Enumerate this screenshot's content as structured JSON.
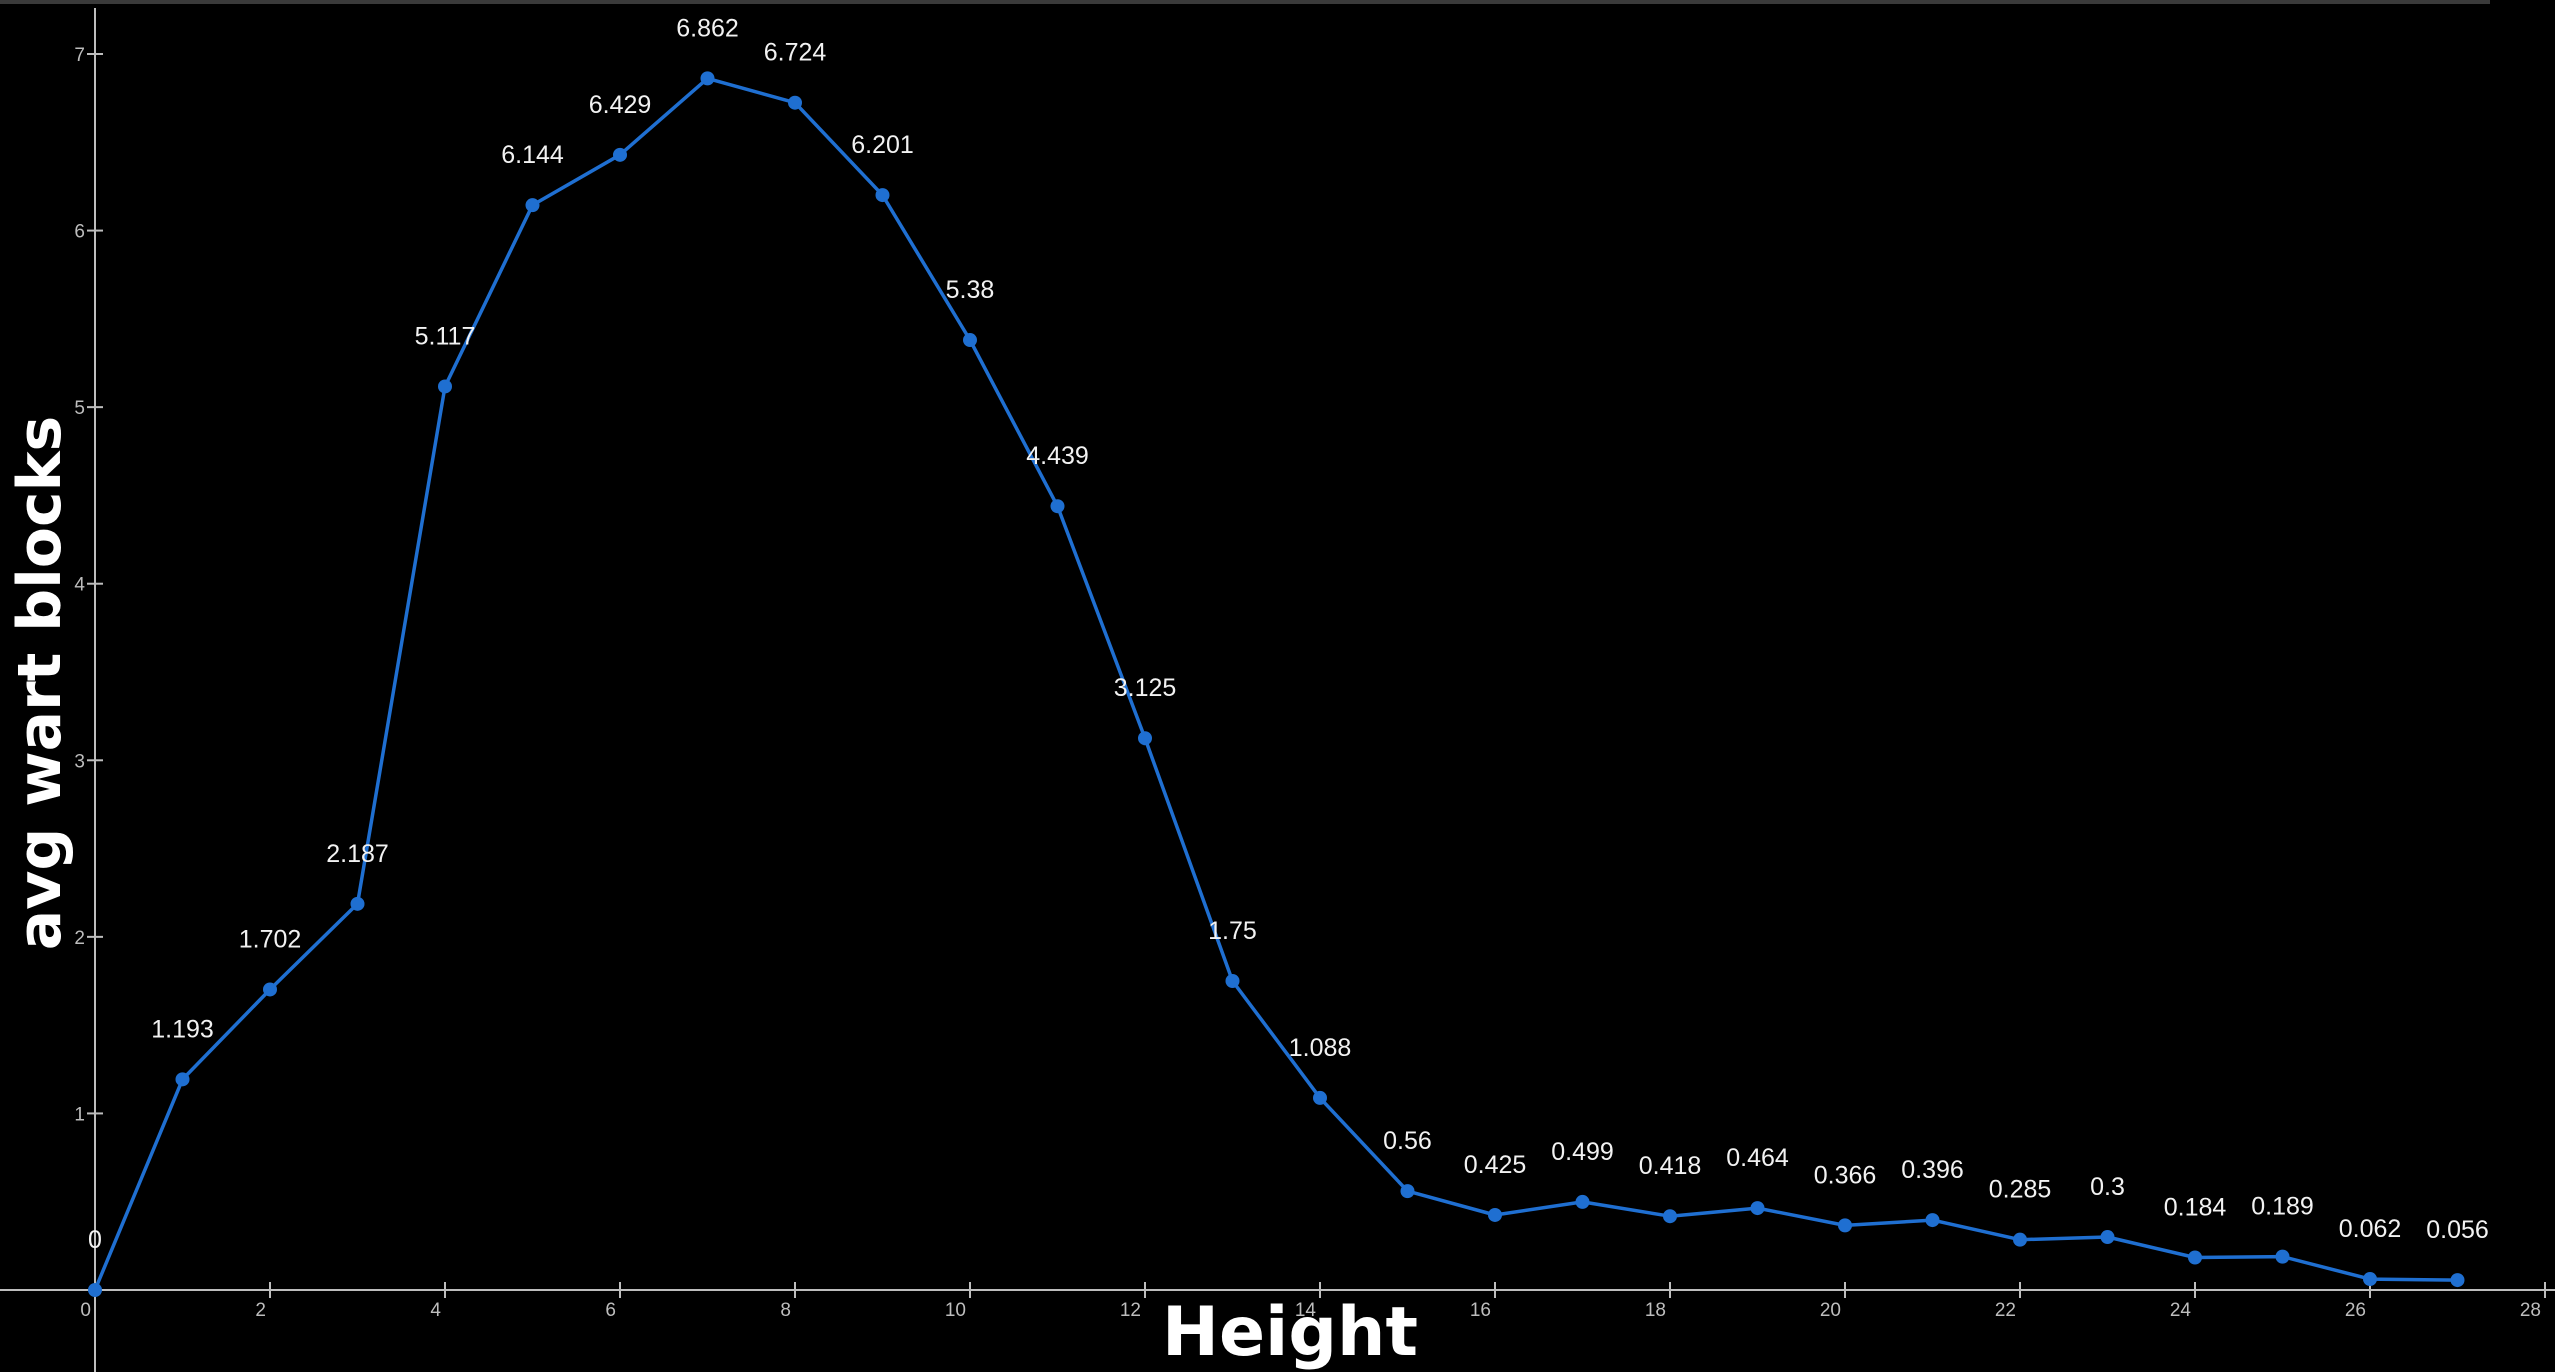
{
  "chart_data": {
    "type": "line",
    "xlabel": "Height",
    "ylabel": "avg wart blocks",
    "xlim": [
      0,
      28
    ],
    "ylim": [
      0,
      7
    ],
    "x_ticks": [
      0,
      2,
      4,
      6,
      8,
      10,
      12,
      14,
      16,
      18,
      20,
      22,
      24,
      26,
      28
    ],
    "y_ticks": [
      1,
      2,
      3,
      4,
      5,
      6,
      7
    ],
    "grid": false,
    "legend": "none",
    "series": [
      {
        "color": "#1f6fd1",
        "x": [
          0,
          1,
          2,
          3,
          4,
          5,
          6,
          7,
          8,
          9,
          10,
          11,
          12,
          13,
          14,
          15,
          16,
          17,
          18,
          19,
          20,
          21,
          22,
          23,
          24,
          25,
          26,
          27
        ],
        "y": [
          0,
          1.193,
          1.702,
          2.187,
          5.117,
          6.144,
          6.429,
          6.862,
          6.724,
          6.201,
          5.38,
          4.439,
          3.125,
          1.75,
          1.088,
          0.56,
          0.425,
          0.499,
          0.418,
          0.464,
          0.366,
          0.396,
          0.285,
          0.3,
          0.184,
          0.189,
          0.062,
          0.056
        ],
        "labels": [
          "0",
          "1.193",
          "1.702",
          "2.187",
          "5.117",
          "6.144",
          "6.429",
          "6.862",
          "6.724",
          "6.201",
          "5.38",
          "4.439",
          "3.125",
          "1.75",
          "1.088",
          "0.56",
          "0.425",
          "0.499",
          "0.418",
          "0.464",
          "0.366",
          "0.396",
          "0.285",
          "0.3",
          "0.184",
          "0.189",
          "0.062",
          "0.056"
        ]
      }
    ],
    "colors": {
      "background": "#000000",
      "axis": "#bdbdbd",
      "line": "#1f6fd1",
      "text": "#ffffff"
    }
  }
}
